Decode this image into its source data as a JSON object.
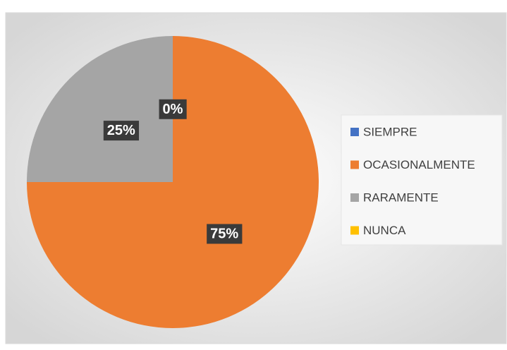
{
  "chart_data": {
    "type": "pie",
    "categories": [
      "SIEMPRE",
      "OCASIONALMENTE",
      "RARAMENTE",
      "NUNCA"
    ],
    "values": [
      0,
      75,
      25,
      0
    ],
    "value_labels": [
      "0%",
      "75%",
      "25%",
      null
    ],
    "colors": [
      "#4472c4",
      "#ed7d31",
      "#a5a5a5",
      "#ffc000"
    ],
    "legend": "right"
  }
}
